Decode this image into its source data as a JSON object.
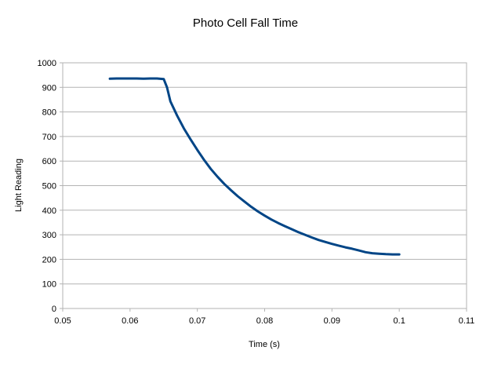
{
  "chart_data": {
    "type": "line",
    "title": "Photo Cell Fall Time",
    "xlabel": "Time (s)",
    "ylabel": "Light Reading",
    "xlim": [
      0.05,
      0.11
    ],
    "ylim": [
      0,
      1000
    ],
    "x_ticks": [
      "0.05",
      "0.06",
      "0.07",
      "0.08",
      "0.09",
      "0.1",
      "0.11"
    ],
    "y_ticks": [
      "0",
      "100",
      "200",
      "300",
      "400",
      "500",
      "600",
      "700",
      "800",
      "900",
      "1000"
    ],
    "grid": "horizontal",
    "legend": "none",
    "series": [
      {
        "color": "#004586",
        "x": [
          0.057,
          0.058,
          0.059,
          0.06,
          0.061,
          0.062,
          0.063,
          0.064,
          0.065,
          0.0655,
          0.066,
          0.067,
          0.068,
          0.069,
          0.07,
          0.071,
          0.072,
          0.073,
          0.074,
          0.075,
          0.076,
          0.077,
          0.078,
          0.079,
          0.08,
          0.081,
          0.082,
          0.083,
          0.084,
          0.085,
          0.086,
          0.087,
          0.088,
          0.089,
          0.09,
          0.091,
          0.092,
          0.093,
          0.094,
          0.095,
          0.096,
          0.097,
          0.098,
          0.099,
          0.1
        ],
        "y": [
          935,
          936,
          936,
          936,
          936,
          935,
          936,
          936,
          934,
          900,
          843,
          785,
          733,
          688,
          645,
          605,
          568,
          536,
          507,
          481,
          457,
          435,
          414,
          395,
          378,
          362,
          348,
          335,
          323,
          311,
          300,
          289,
          279,
          271,
          263,
          256,
          249,
          243,
          236,
          229,
          225,
          223,
          221,
          220,
          220
        ]
      }
    ]
  },
  "colors": {
    "plot_border": "#b3b3b3",
    "grid": "#b3b3b3",
    "series": "#004586"
  }
}
